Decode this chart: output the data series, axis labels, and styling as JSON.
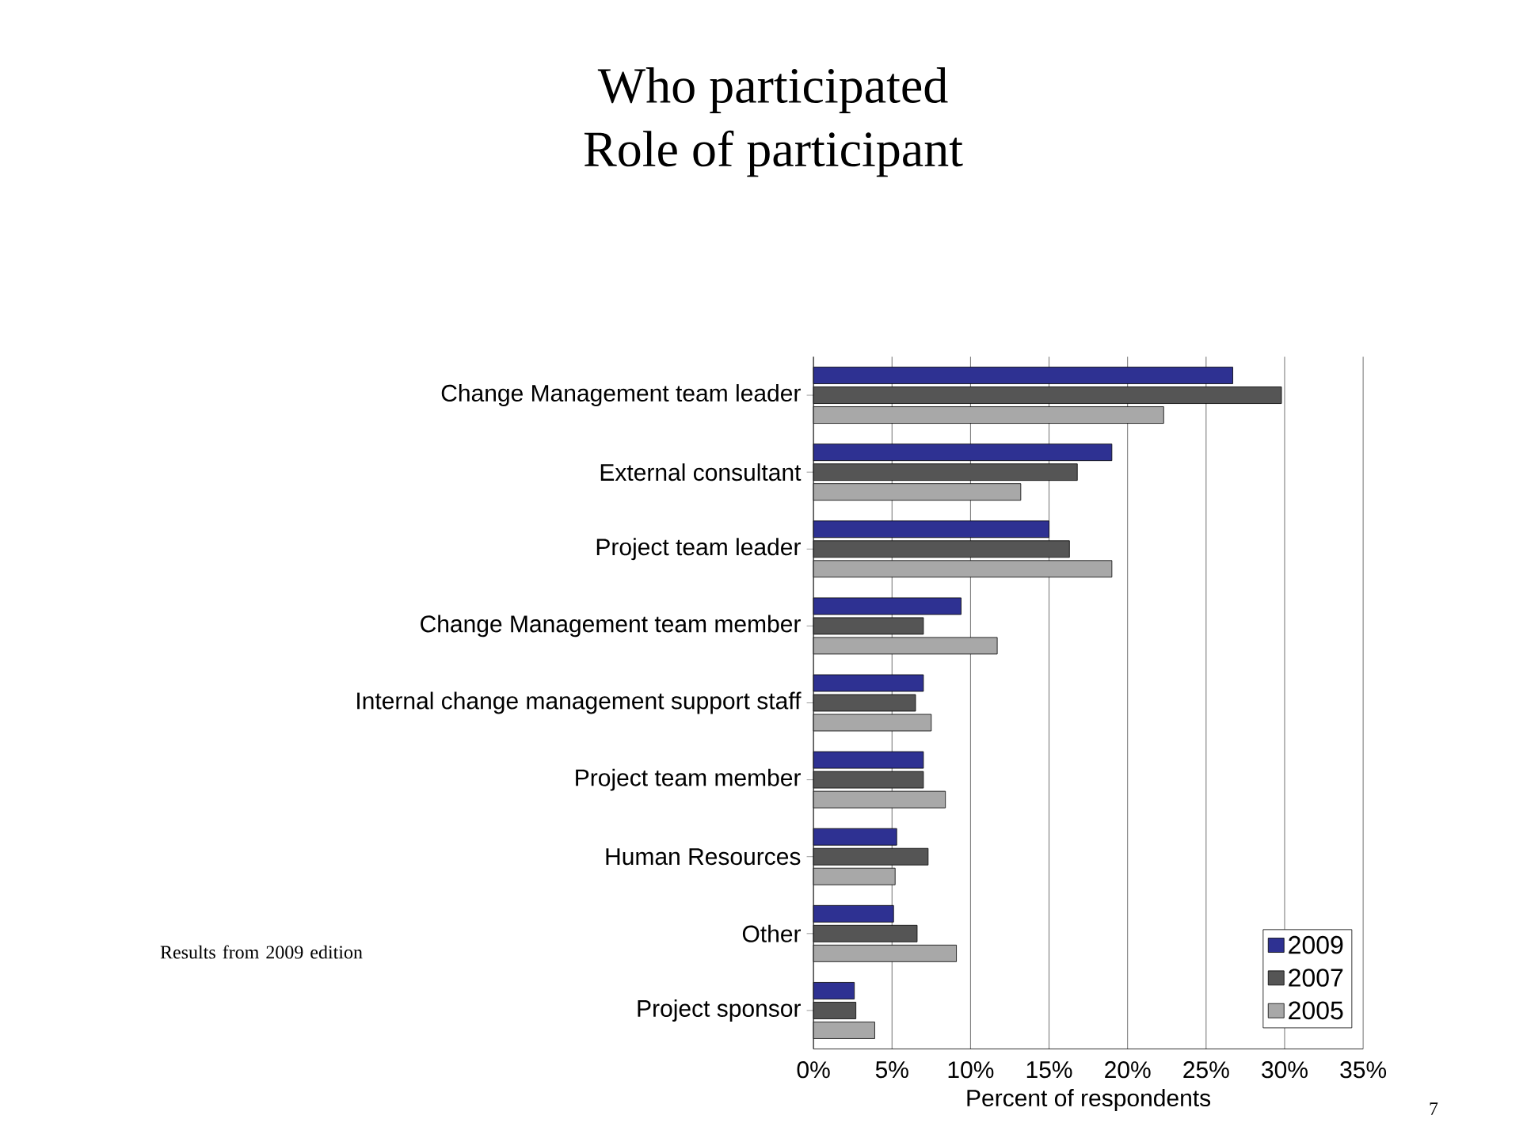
{
  "chart_data": {
    "type": "bar",
    "orientation": "horizontal",
    "title": "Who participated",
    "subtitle": "Role of participant",
    "categories": [
      "Change Management team leader",
      "External consultant",
      "Project team leader",
      "Change Management team member",
      "Internal change management support staff",
      "Project team member",
      "Human Resources",
      "Other",
      "Project sponsor"
    ],
    "series": [
      {
        "name": "2009",
        "color": "#2e3192",
        "values": [
          26.7,
          19.0,
          15.0,
          9.4,
          7.0,
          7.0,
          5.3,
          5.1,
          2.6
        ]
      },
      {
        "name": "2007",
        "color": "#555555",
        "values": [
          29.8,
          16.8,
          16.3,
          7.0,
          6.5,
          7.0,
          7.3,
          6.6,
          2.7
        ]
      },
      {
        "name": "2005",
        "color": "#a8a8a8",
        "values": [
          22.3,
          13.2,
          19.0,
          11.7,
          7.5,
          8.4,
          5.2,
          9.1,
          3.9
        ]
      }
    ],
    "xlim": [
      0,
      35
    ],
    "xticks": [
      {
        "value": 0,
        "label": "0%"
      },
      {
        "value": 5,
        "label": "5%"
      },
      {
        "value": 10,
        "label": "10%"
      },
      {
        "value": 15,
        "label": "15%"
      },
      {
        "value": 20,
        "label": "20%"
      },
      {
        "value": 25,
        "label": "25%"
      },
      {
        "value": 30,
        "label": "30%"
      },
      {
        "value": 35,
        "label": "35%"
      }
    ],
    "xlabel": "Percent of respondents",
    "grid": "x",
    "legend": "bottom right",
    "annotations": [
      "Results from 2009 edition",
      "7"
    ]
  }
}
